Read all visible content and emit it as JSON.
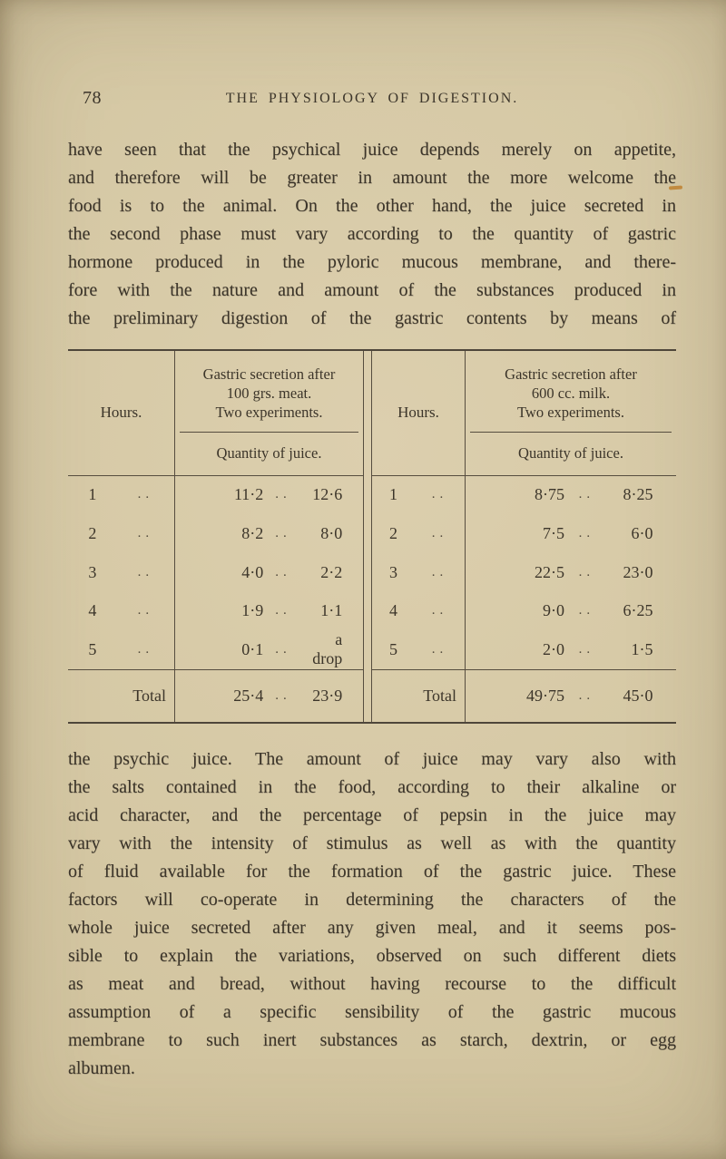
{
  "page": {
    "number": "78",
    "running_head": "THE PHYSIOLOGY OF DIGESTION."
  },
  "glyphs": {
    "dots": ".."
  },
  "paragraph1": {
    "lines": [
      "have seen that the psychical juice depends merely on appetite,",
      "and therefore will be greater in amount the more welcome the",
      "food is to the animal.  On the other hand, the juice secreted in",
      "the second phase must vary according to the quantity of gastric",
      "hormone produced in the pyloric mucous membrane, and there-",
      "fore with the nature and amount of the substances produced in",
      "the preliminary digestion of the gastric contents by means of"
    ]
  },
  "paragraph2": {
    "lines": [
      "the psychic juice.  The amount of juice may vary also with",
      "the salts contained in the food, according to their alkaline or",
      "acid character, and the percentage of pepsin in the juice may",
      "vary with the intensity of stimulus as well as with the quantity",
      "of fluid available for the formation of the gastric juice.  These",
      "factors will co-operate in determining the characters of the",
      "whole juice secreted after any given meal, and it seems pos-",
      "sible to explain the variations, observed on such different diets",
      "as meat and bread, without having recourse to the difficult",
      "assumption of a specific sensibility of the gastric mucous",
      "membrane to such inert substances as starch, dextrin, or egg",
      "albumen."
    ]
  },
  "table": {
    "left": {
      "hours_header": "Hours.",
      "secretion_header_line1": "Gastric secretion after",
      "secretion_header_line2": "100 grs. meat.",
      "secretion_header_line3": "Two experiments.",
      "quantity_header": "Quantity of juice.",
      "rows": [
        {
          "hours": "1",
          "v1": "11·2",
          "v2": "12·6"
        },
        {
          "hours": "2",
          "v1": "8·2",
          "v2": "8·0"
        },
        {
          "hours": "3",
          "v1": "4·0",
          "v2": "2·2"
        },
        {
          "hours": "4",
          "v1": "1·9",
          "v2": "1·1"
        },
        {
          "hours": "5",
          "v1": "0·1",
          "v2": "a drop"
        }
      ],
      "total_label": "Total",
      "total_v1": "25·4",
      "total_v2": "23·9"
    },
    "right": {
      "hours_header": "Hours.",
      "secretion_header_line1": "Gastric secretion after",
      "secretion_header_line2": "600 cc. milk.",
      "secretion_header_line3": "Two experiments.",
      "quantity_header": "Quantity of juice.",
      "rows": [
        {
          "hours": "1",
          "v1": "8·75",
          "v2": "8·25"
        },
        {
          "hours": "2",
          "v1": "7·5",
          "v2": "6·0"
        },
        {
          "hours": "3",
          "v1": "22·5",
          "v2": "23·0"
        },
        {
          "hours": "4",
          "v1": "9·0",
          "v2": "6·25"
        },
        {
          "hours": "5",
          "v1": "2·0",
          "v2": "1·5"
        }
      ],
      "total_label": "Total",
      "total_v1": "49·75",
      "total_v2": "45·0"
    }
  },
  "colors": {
    "paper": "#d5c8a4",
    "ink": "#3c352a",
    "rule": "#564d3f",
    "pencil_mark": "#bf8434"
  }
}
